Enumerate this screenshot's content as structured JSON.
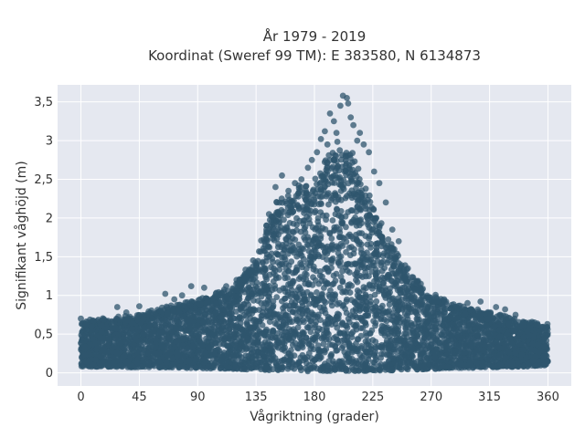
{
  "chart_data": {
    "type": "scatter",
    "title_line1": "År 1979 - 2019",
    "title_line2": "Koordinat (Sweref 99 TM): E 383580, N 6134873",
    "xlabel": "Vågriktning (grader)",
    "ylabel": "Signifikant våghöjd (m)",
    "xlim": [
      -18,
      378
    ],
    "ylim": [
      -0.17,
      3.72
    ],
    "x_ticks": [
      0,
      45,
      90,
      135,
      180,
      225,
      270,
      315,
      360
    ],
    "x_tick_labels": [
      "0",
      "45",
      "90",
      "135",
      "180",
      "225",
      "270",
      "315",
      "360"
    ],
    "y_ticks": [
      0,
      0.5,
      1,
      1.5,
      2,
      2.5,
      3,
      3.5
    ],
    "y_tick_labels": [
      "0",
      "0,5",
      "1",
      "1,5",
      "2",
      "2,5",
      "3",
      "3,5"
    ],
    "grid": true,
    "marker_color": "#2f566e",
    "plot_background": "#e5e8f0",
    "envelope": {
      "x": [
        0,
        20,
        45,
        60,
        90,
        120,
        135,
        150,
        165,
        180,
        195,
        200,
        210,
        225,
        240,
        255,
        270,
        290,
        315,
        340,
        360
      ],
      "upper": [
        0.65,
        0.68,
        0.72,
        0.8,
        0.9,
        1.1,
        1.5,
        2.1,
        2.3,
        2.4,
        2.8,
        2.9,
        2.7,
        2.1,
        1.6,
        1.2,
        1.0,
        0.85,
        0.75,
        0.65,
        0.6
      ],
      "lower": [
        0.08,
        0.08,
        0.07,
        0.07,
        0.06,
        0.05,
        0.04,
        0.03,
        0.02,
        0.02,
        0.02,
        0.02,
        0.02,
        0.03,
        0.03,
        0.04,
        0.05,
        0.06,
        0.07,
        0.08,
        0.1
      ]
    },
    "outliers": [
      {
        "x": 0,
        "y": 0.7
      },
      {
        "x": 28,
        "y": 0.85
      },
      {
        "x": 35,
        "y": 0.78
      },
      {
        "x": 45,
        "y": 0.86
      },
      {
        "x": 65,
        "y": 1.02
      },
      {
        "x": 72,
        "y": 0.95
      },
      {
        "x": 78,
        "y": 1.0
      },
      {
        "x": 85,
        "y": 1.12
      },
      {
        "x": 95,
        "y": 1.1
      },
      {
        "x": 112,
        "y": 1.12
      },
      {
        "x": 120,
        "y": 1.2
      },
      {
        "x": 130,
        "y": 1.3
      },
      {
        "x": 145,
        "y": 2.05
      },
      {
        "x": 150,
        "y": 2.4
      },
      {
        "x": 155,
        "y": 2.55
      },
      {
        "x": 160,
        "y": 2.35
      },
      {
        "x": 165,
        "y": 2.45
      },
      {
        "x": 170,
        "y": 2.5
      },
      {
        "x": 175,
        "y": 2.65
      },
      {
        "x": 178,
        "y": 2.75
      },
      {
        "x": 182,
        "y": 2.85
      },
      {
        "x": 185,
        "y": 3.02
      },
      {
        "x": 188,
        "y": 3.12
      },
      {
        "x": 190,
        "y": 2.95
      },
      {
        "x": 192,
        "y": 3.35
      },
      {
        "x": 195,
        "y": 3.25
      },
      {
        "x": 197,
        "y": 3.1
      },
      {
        "x": 200,
        "y": 3.45
      },
      {
        "x": 202,
        "y": 3.58
      },
      {
        "x": 205,
        "y": 3.55
      },
      {
        "x": 206,
        "y": 3.48
      },
      {
        "x": 208,
        "y": 3.3
      },
      {
        "x": 210,
        "y": 3.2
      },
      {
        "x": 213,
        "y": 3.0
      },
      {
        "x": 215,
        "y": 3.1
      },
      {
        "x": 218,
        "y": 2.95
      },
      {
        "x": 222,
        "y": 2.85
      },
      {
        "x": 226,
        "y": 2.6
      },
      {
        "x": 230,
        "y": 2.45
      },
      {
        "x": 235,
        "y": 2.2
      },
      {
        "x": 240,
        "y": 1.85
      },
      {
        "x": 245,
        "y": 1.7
      },
      {
        "x": 252,
        "y": 1.35
      },
      {
        "x": 262,
        "y": 1.15
      },
      {
        "x": 280,
        "y": 0.95
      },
      {
        "x": 298,
        "y": 0.9
      },
      {
        "x": 308,
        "y": 0.92
      },
      {
        "x": 320,
        "y": 0.85
      },
      {
        "x": 327,
        "y": 0.82
      },
      {
        "x": 335,
        "y": 0.75
      },
      {
        "x": 352,
        "y": 0.62
      },
      {
        "x": 358,
        "y": 0.58
      }
    ]
  }
}
